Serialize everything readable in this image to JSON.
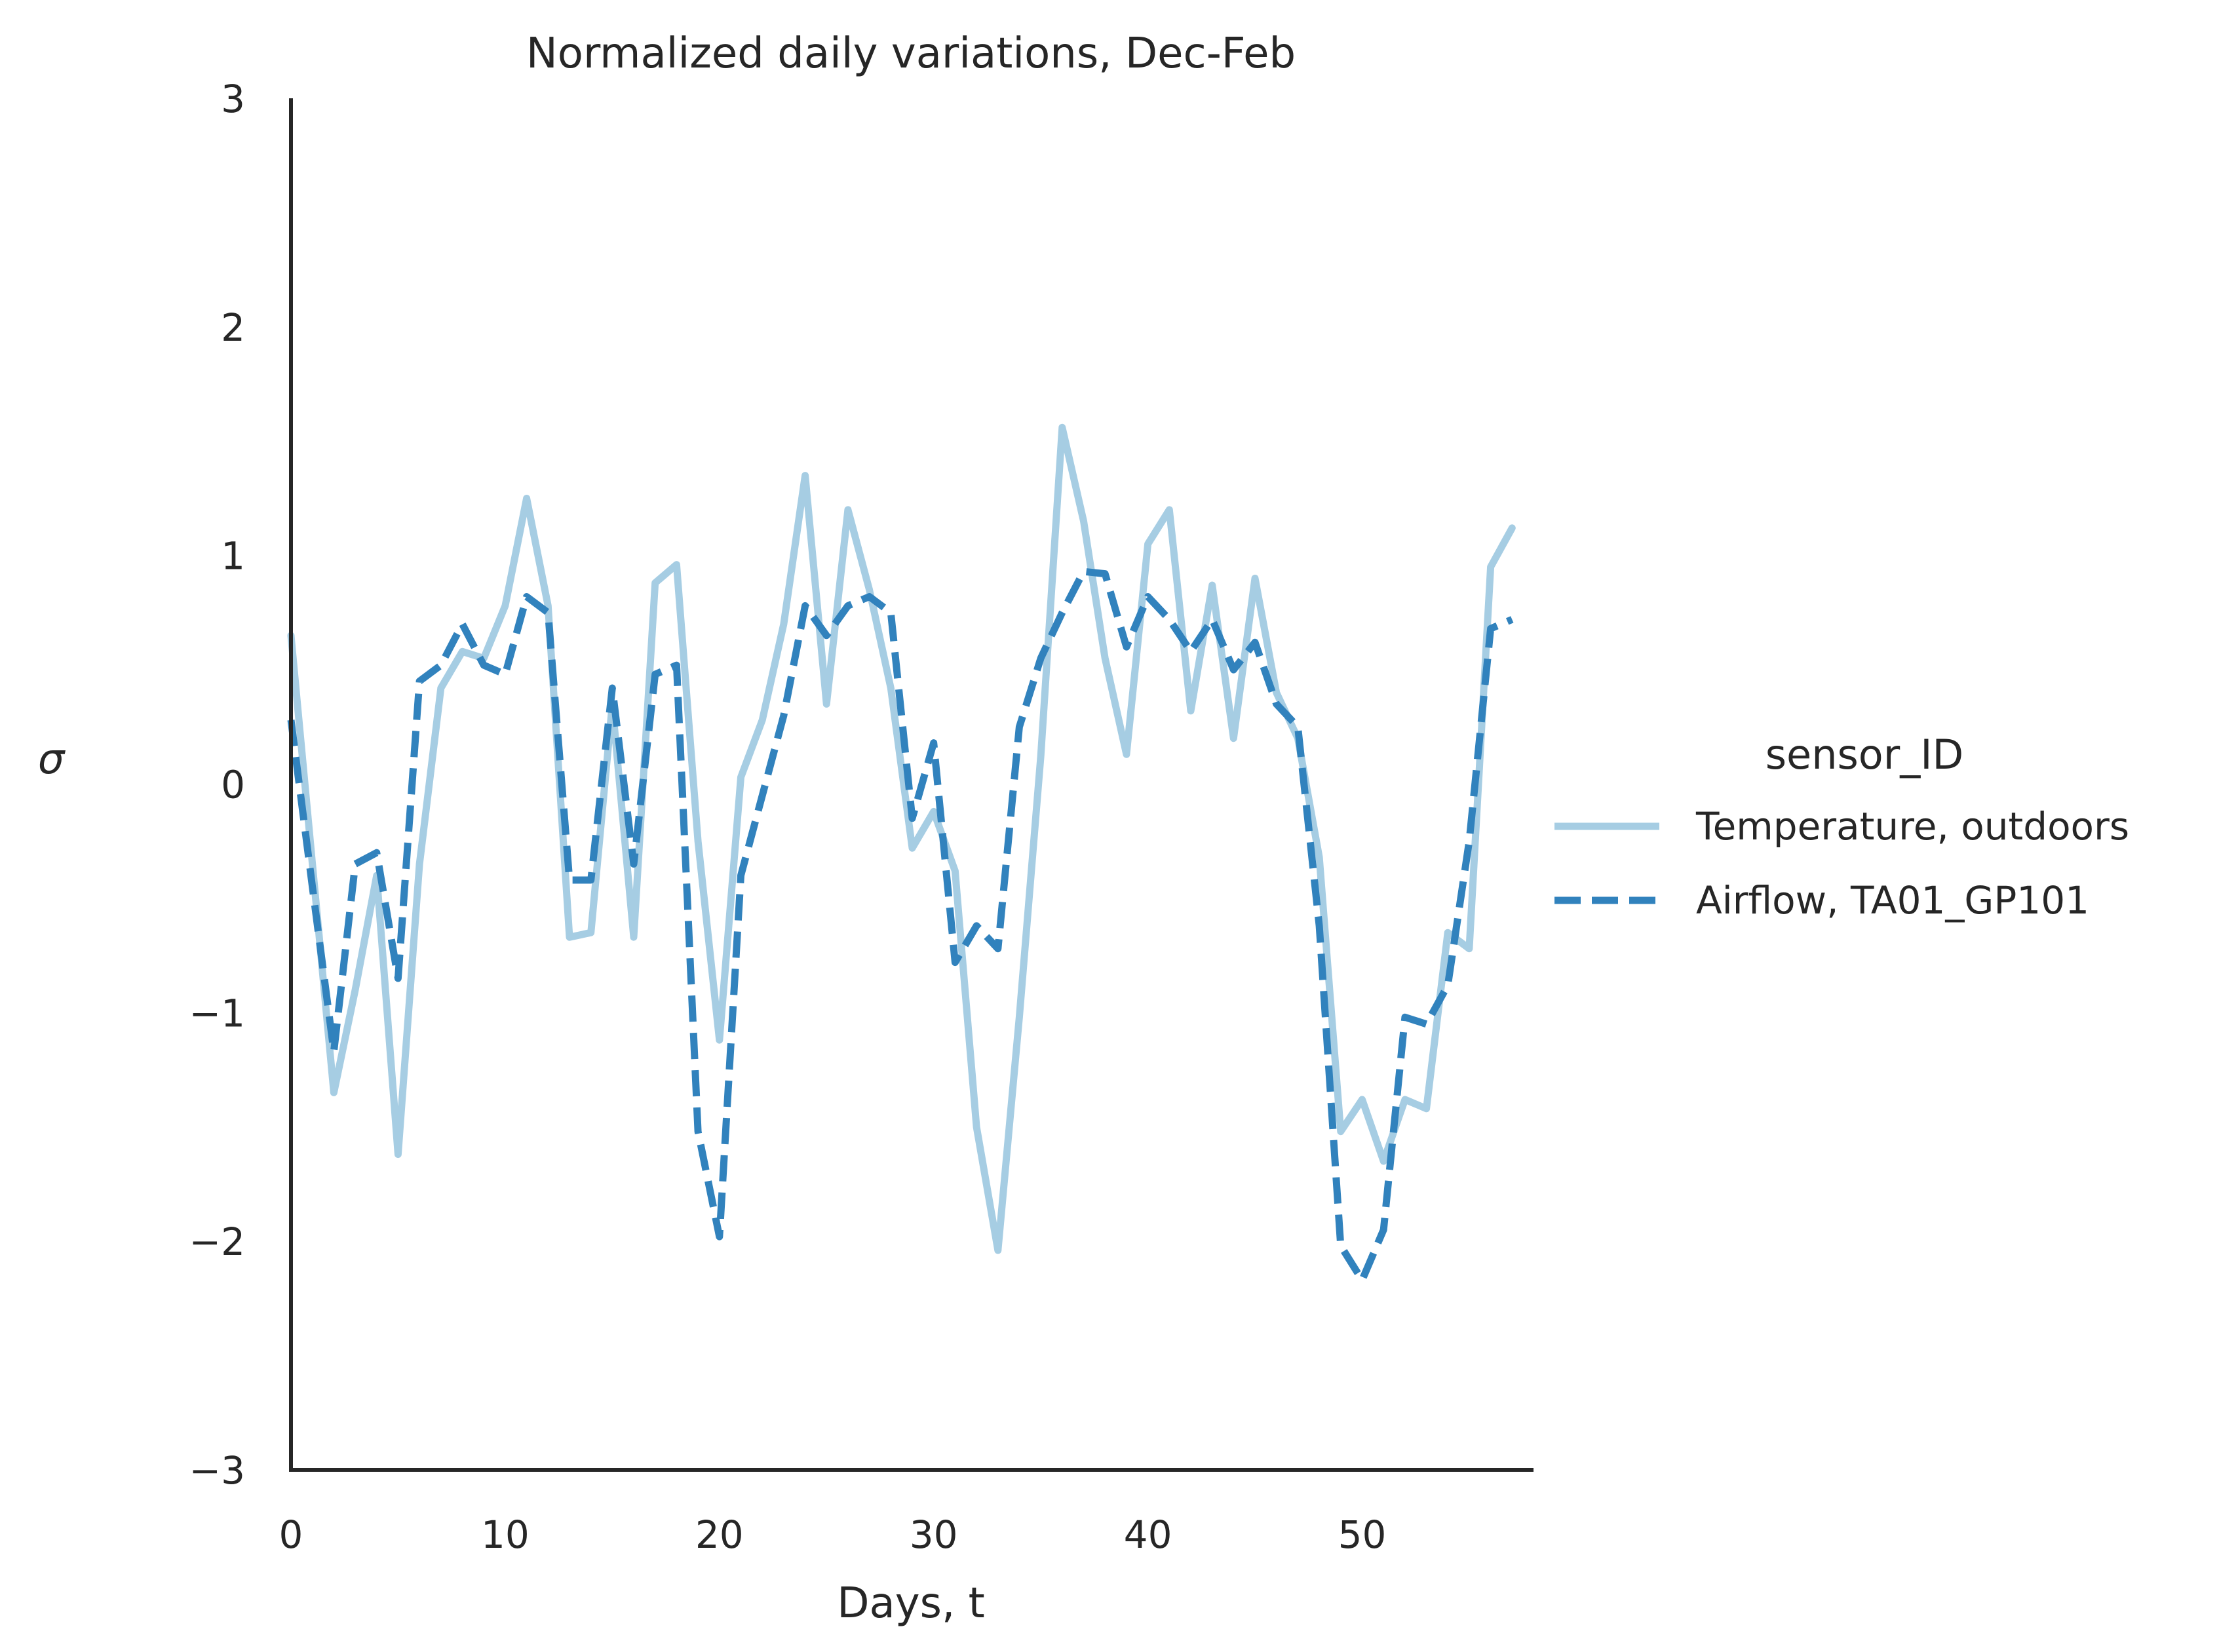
{
  "chart_data": {
    "type": "line",
    "title": "Normalized daily variations, Dec-Feb",
    "xlabel": "Days, t",
    "ylabel": "σ",
    "xlim": [
      0,
      58
    ],
    "ylim": [
      -3,
      3
    ],
    "xticks": [
      "0",
      "10",
      "20",
      "30",
      "40",
      "50"
    ],
    "xtick_values": [
      0,
      10,
      20,
      30,
      40,
      50
    ],
    "yticks": [
      "−3",
      "−2",
      "−1",
      "0",
      "1",
      "2",
      "3"
    ],
    "ytick_values": [
      -3,
      -2,
      -1,
      0,
      1,
      2,
      3
    ],
    "grid": false,
    "legend": {
      "title": "sensor_ID",
      "position": "right"
    },
    "x": [
      0,
      1,
      2,
      3,
      4,
      5,
      6,
      7,
      8,
      9,
      10,
      11,
      12,
      13,
      14,
      15,
      16,
      17,
      18,
      19,
      20,
      21,
      22,
      23,
      24,
      25,
      26,
      27,
      28,
      29,
      30,
      31,
      32,
      33,
      34,
      35,
      36,
      37,
      38,
      39,
      40,
      41,
      42,
      43,
      44,
      45,
      46,
      47,
      48,
      49,
      50,
      51,
      52,
      53,
      54,
      55,
      56,
      57
    ],
    "series": [
      {
        "name": "Temperature, outdoors",
        "color": "#a6cde3",
        "dash": "solid",
        "values": [
          0.65,
          -0.35,
          -1.35,
          -0.9,
          -0.4,
          -1.62,
          -0.35,
          0.42,
          0.58,
          0.55,
          0.78,
          1.25,
          0.78,
          -0.67,
          -0.65,
          0.35,
          -0.67,
          0.88,
          0.96,
          -0.25,
          -1.12,
          0.03,
          0.28,
          0.7,
          1.35,
          0.35,
          1.2,
          0.85,
          0.42,
          -0.28,
          -0.12,
          -0.38,
          -1.5,
          -2.04,
          -1.02,
          0.12,
          1.56,
          1.15,
          0.55,
          0.13,
          1.05,
          1.2,
          0.32,
          0.87,
          0.2,
          0.9,
          0.4,
          0.2,
          -0.32,
          -1.52,
          -1.38,
          -1.65,
          -1.38,
          -1.42,
          -0.65,
          -0.72,
          0.95,
          1.12
        ]
      },
      {
        "name": "Airflow, TA01_GP101",
        "color": "#3182bd",
        "dash": "dashed",
        "values": [
          0.28,
          -0.45,
          -1.17,
          -0.35,
          -0.3,
          -0.85,
          0.45,
          0.52,
          0.7,
          0.52,
          0.48,
          0.82,
          0.75,
          -0.42,
          -0.42,
          0.42,
          -0.35,
          0.48,
          0.52,
          -1.52,
          -1.98,
          -0.4,
          -0.05,
          0.3,
          0.78,
          0.65,
          0.78,
          0.82,
          0.75,
          -0.15,
          0.18,
          -0.78,
          -0.62,
          -0.72,
          0.25,
          0.55,
          0.75,
          0.93,
          0.92,
          0.6,
          0.82,
          0.72,
          0.58,
          0.72,
          0.5,
          0.62,
          0.35,
          0.25,
          -0.62,
          -2.02,
          -2.17,
          -1.95,
          -1.02,
          -1.05,
          -0.88,
          -0.25,
          0.68,
          0.72
        ]
      }
    ]
  }
}
